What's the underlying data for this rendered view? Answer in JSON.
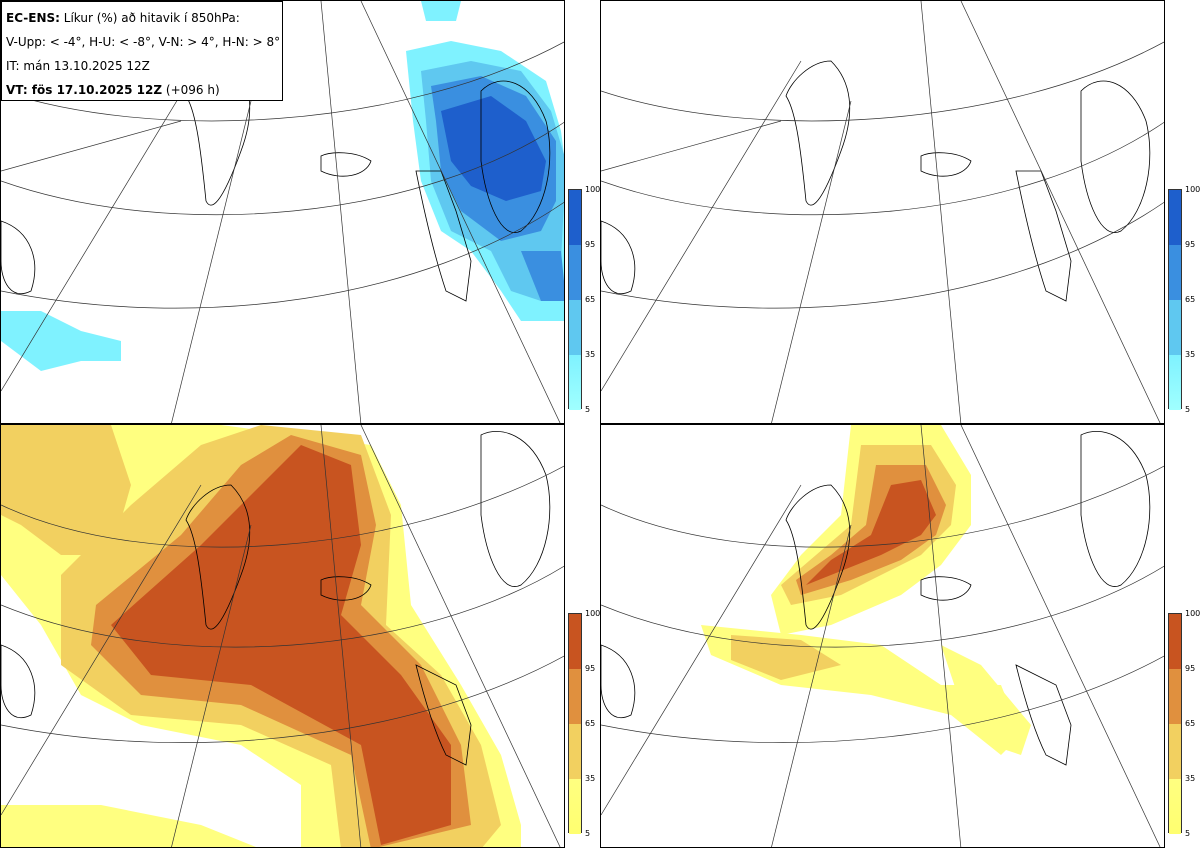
{
  "header": {
    "line1_bold": "EC-ENS:",
    "line1_rest": " Líkur (%) að hitavik í 850hPa:",
    "line2": "V-Upp: < -4°, H-U: < -8°, V-N: > 4°, H-N: > 8°",
    "line3": "IT: mán 13.10.2025 12Z",
    "line4_bold": "VT: fös 17.10.2025 12Z",
    "line4_rest": " (+096 h)"
  },
  "colors": {
    "coast": "#000000",
    "grid": "#333333",
    "cold_35": "#7ff2ff",
    "cold_65": "#5fc8f0",
    "cold_95": "#3a8fe0",
    "cold_100": "#1e5fcc",
    "warm_35": "#ffff80",
    "warm_65": "#f2d060",
    "warm_95": "#e0903e",
    "warm_100": "#c85420"
  },
  "panels": [
    {
      "name": "panel-cold-4",
      "palette": "cold"
    },
    {
      "name": "panel-cold-8",
      "palette": "cold"
    },
    {
      "name": "panel-warm-4",
      "palette": "warm"
    },
    {
      "name": "panel-warm-8",
      "palette": "warm"
    }
  ],
  "colorbar": {
    "ticks": [
      "100",
      "95",
      "65",
      "35",
      "5"
    ]
  }
}
